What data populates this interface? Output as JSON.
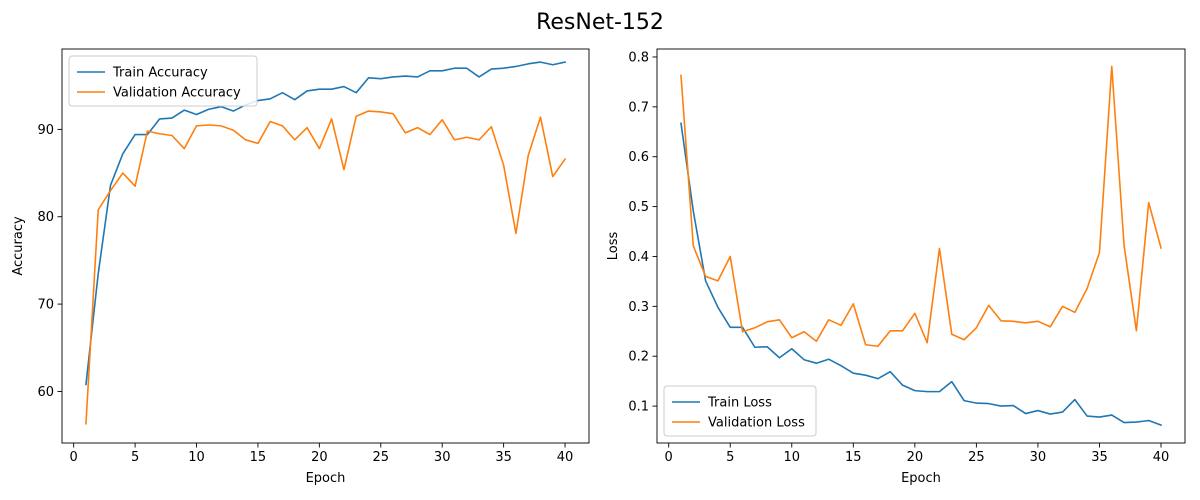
{
  "figure_title": "ResNet-152",
  "chart_data": [
    {
      "type": "line",
      "xlabel": "Epoch",
      "ylabel": "Accuracy",
      "xlim": [
        -0.95,
        41.95
      ],
      "ylim": [
        54.1,
        99.2
      ],
      "xticks": [
        0,
        5,
        10,
        15,
        20,
        25,
        30,
        35,
        40
      ],
      "yticks": [
        60,
        70,
        80,
        90
      ],
      "grid": false,
      "legend_position": "upper-left",
      "x": [
        1,
        2,
        3,
        4,
        5,
        6,
        7,
        8,
        9,
        10,
        11,
        12,
        13,
        14,
        15,
        16,
        17,
        18,
        19,
        20,
        21,
        22,
        23,
        24,
        25,
        26,
        27,
        28,
        29,
        30,
        31,
        32,
        33,
        34,
        35,
        36,
        37,
        38,
        39,
        40
      ],
      "series": [
        {
          "name": "Train Accuracy",
          "color": "#1f77b4",
          "values": [
            60.8,
            73.5,
            83.6,
            87.2,
            89.4,
            89.4,
            91.2,
            91.3,
            92.2,
            91.7,
            92.3,
            92.6,
            92.1,
            92.8,
            93.3,
            93.5,
            94.2,
            93.4,
            94.4,
            94.6,
            94.6,
            94.9,
            94.2,
            95.9,
            95.8,
            96.0,
            96.1,
            96.0,
            96.7,
            96.7,
            97.0,
            97.0,
            96.0,
            96.9,
            97.0,
            97.2,
            97.5,
            97.7,
            97.4,
            97.7
          ]
        },
        {
          "name": "Validation Accuracy",
          "color": "#ff7f0e",
          "values": [
            56.3,
            80.8,
            83.0,
            85.0,
            83.5,
            89.8,
            89.5,
            89.3,
            87.8,
            90.4,
            90.5,
            90.4,
            89.9,
            88.8,
            88.4,
            90.9,
            90.4,
            88.8,
            90.2,
            87.8,
            91.2,
            85.4,
            91.5,
            92.1,
            92.0,
            91.8,
            89.6,
            90.2,
            89.4,
            91.1,
            88.8,
            89.1,
            88.8,
            90.3,
            85.9,
            78.1,
            87.0,
            91.4,
            84.6,
            86.6
          ]
        }
      ]
    },
    {
      "type": "line",
      "xlabel": "Epoch",
      "ylabel": "Loss",
      "xlim": [
        -0.95,
        41.95
      ],
      "ylim": [
        0.026,
        0.816
      ],
      "xticks": [
        0,
        5,
        10,
        15,
        20,
        25,
        30,
        35,
        40
      ],
      "yticks": [
        0.1,
        0.2,
        0.3,
        0.4,
        0.5,
        0.6,
        0.7,
        0.8
      ],
      "grid": false,
      "legend_position": "lower-left",
      "x": [
        1,
        2,
        3,
        4,
        5,
        6,
        7,
        8,
        9,
        10,
        11,
        12,
        13,
        14,
        15,
        16,
        17,
        18,
        19,
        20,
        21,
        22,
        23,
        24,
        25,
        26,
        27,
        28,
        29,
        30,
        31,
        32,
        33,
        34,
        35,
        36,
        37,
        38,
        39,
        40
      ],
      "series": [
        {
          "name": "Train Loss",
          "color": "#1f77b4",
          "values": [
            0.667,
            0.491,
            0.351,
            0.298,
            0.258,
            0.258,
            0.218,
            0.219,
            0.197,
            0.215,
            0.193,
            0.186,
            0.194,
            0.181,
            0.166,
            0.162,
            0.155,
            0.169,
            0.142,
            0.131,
            0.129,
            0.129,
            0.149,
            0.111,
            0.106,
            0.105,
            0.1,
            0.101,
            0.085,
            0.091,
            0.084,
            0.088,
            0.113,
            0.08,
            0.078,
            0.082,
            0.067,
            0.068,
            0.071,
            0.062
          ]
        },
        {
          "name": "Validation Loss",
          "color": "#ff7f0e",
          "values": [
            0.763,
            0.421,
            0.36,
            0.351,
            0.4,
            0.249,
            0.257,
            0.269,
            0.273,
            0.237,
            0.249,
            0.23,
            0.273,
            0.262,
            0.305,
            0.223,
            0.22,
            0.251,
            0.251,
            0.286,
            0.227,
            0.416,
            0.244,
            0.233,
            0.257,
            0.302,
            0.271,
            0.27,
            0.267,
            0.27,
            0.259,
            0.3,
            0.288,
            0.336,
            0.408,
            0.781,
            0.422,
            0.251,
            0.508,
            0.417
          ]
        }
      ]
    }
  ]
}
